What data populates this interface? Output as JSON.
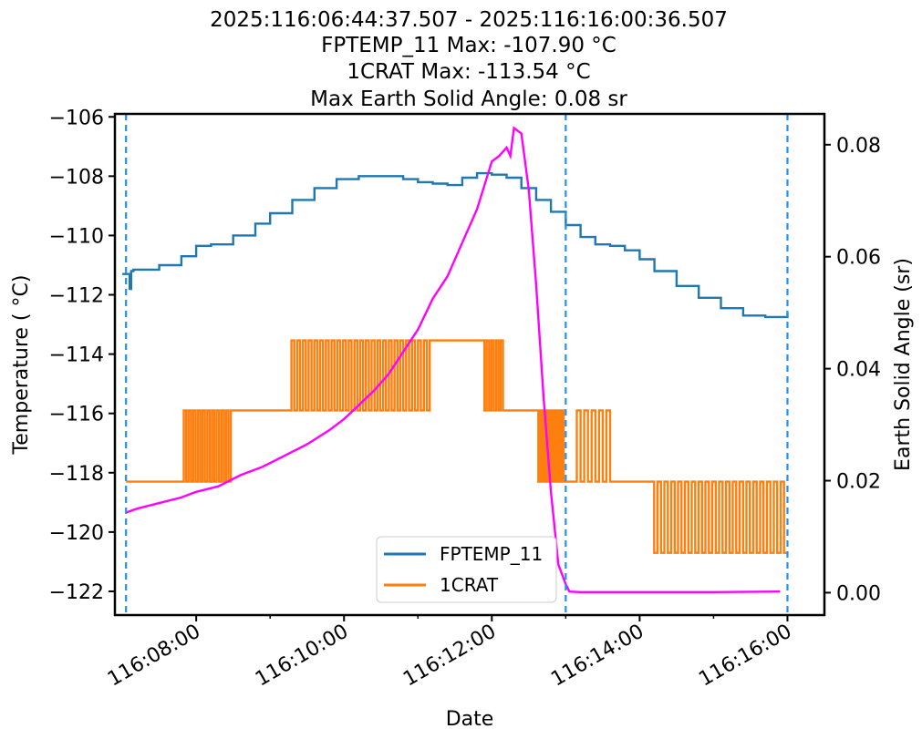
{
  "chart_data": {
    "type": "line",
    "title_lines": [
      "2025:116:06:44:37.507 - 2025:116:16:00:36.507",
      "FPTEMP_11 Max: -107.90 $^\\circ$C",
      "1CRAT Max: -113.54 $^\\circ$C",
      "Max Earth Solid Angle: 0.08 sr"
    ],
    "title_display": [
      "2025:116:06:44:37.507 - 2025:116:16:00:36.507",
      "FPTEMP_11 Max: -107.90 °C",
      "1CRAT Max: -113.54 °C",
      "Max Earth Solid Angle: 0.08 sr"
    ],
    "xlabel": "Date",
    "ylabel": "Temperature ( °C)",
    "y2label": "Earth Solid Angle (sr)",
    "x_unit": "minutes",
    "xlim": [
      6.9,
      16.5
    ],
    "ylim": [
      -122.8,
      -105.9
    ],
    "y2lim": [
      -0.004,
      0.0855
    ],
    "xticks": [
      {
        "v": 8,
        "label": "116:08:00"
      },
      {
        "v": 10,
        "label": "116:10:00"
      },
      {
        "v": 12,
        "label": "116:12:00"
      },
      {
        "v": 14,
        "label": "116:14:00"
      },
      {
        "v": 16,
        "label": "116:16:00"
      }
    ],
    "x_minor_ticks": [
      9,
      11,
      13,
      15
    ],
    "yticks": [
      -106,
      -108,
      -110,
      -112,
      -114,
      -116,
      -118,
      -120,
      -122
    ],
    "ytick_labels": [
      "−106",
      "−108",
      "−110",
      "−112",
      "−114",
      "−116",
      "−118",
      "−120",
      "−122"
    ],
    "y2ticks": [
      0.0,
      0.02,
      0.04,
      0.06,
      0.08
    ],
    "y2tick_labels": [
      "0.00",
      "0.02",
      "0.04",
      "0.06",
      "0.08"
    ],
    "vlines": [
      7.05,
      13.0,
      16.0
    ],
    "grid": false,
    "legend_position": "lower-center",
    "colors": {
      "fptemp": "#1f77b4",
      "crat": "#ff7f0e",
      "earth": "#ff00ff",
      "vline": "#1e90ff"
    },
    "series": [
      {
        "name": "FPTEMP_11",
        "axis": "left",
        "x": [
          7.0,
          7.05,
          7.1,
          7.12,
          7.15,
          7.5,
          7.8,
          8.0,
          8.2,
          8.5,
          8.8,
          9.0,
          9.3,
          9.6,
          9.9,
          10.2,
          10.5,
          10.8,
          11.0,
          11.2,
          11.4,
          11.6,
          11.8,
          12.0,
          12.2,
          12.4,
          12.6,
          12.8,
          13.0,
          13.2,
          13.4,
          13.6,
          13.8,
          14.0,
          14.2,
          14.5,
          14.8,
          15.1,
          15.4,
          15.7,
          15.9,
          16.0
        ],
        "y": [
          -111.3,
          -111.3,
          -111.8,
          -111.2,
          -111.15,
          -111.0,
          -110.7,
          -110.35,
          -110.3,
          -110.0,
          -109.6,
          -109.25,
          -108.8,
          -108.4,
          -108.1,
          -108.0,
          -108.0,
          -108.1,
          -108.2,
          -108.25,
          -108.3,
          -108.05,
          -107.9,
          -107.95,
          -108.05,
          -108.4,
          -108.8,
          -109.2,
          -109.65,
          -110.05,
          -110.3,
          -110.35,
          -110.5,
          -110.8,
          -111.2,
          -111.7,
          -112.1,
          -112.45,
          -112.7,
          -112.75,
          -112.75,
          -112.6
        ]
      },
      {
        "name": "1CRAT",
        "axis": "left",
        "levels": [
          -113.54,
          -115.9,
          -118.3,
          -120.7
        ],
        "segments": [
          {
            "x0": 7.05,
            "x1": 7.8,
            "mode": "const",
            "level": -118.3
          },
          {
            "x0": 7.8,
            "x1": 8.5,
            "mode": "osc",
            "levels": [
              -118.3,
              -115.9
            ],
            "n": 22
          },
          {
            "x0": 8.5,
            "x1": 9.25,
            "mode": "const",
            "level": -115.9
          },
          {
            "x0": 9.25,
            "x1": 10.8,
            "mode": "osc",
            "levels": [
              -115.9,
              -113.54
            ],
            "n": 40
          },
          {
            "x0": 10.8,
            "x1": 11.2,
            "mode": "osc",
            "levels": [
              -115.9,
              -113.54
            ],
            "n": 10
          },
          {
            "x0": 11.2,
            "x1": 11.9,
            "mode": "const",
            "level": -113.54
          },
          {
            "x0": 11.9,
            "x1": 12.15,
            "mode": "osc",
            "levels": [
              -115.9,
              -113.54
            ],
            "n": 8
          },
          {
            "x0": 12.15,
            "x1": 12.6,
            "mode": "const",
            "level": -115.9
          },
          {
            "x0": 12.6,
            "x1": 13.0,
            "mode": "osc",
            "levels": [
              -115.9,
              -118.3
            ],
            "n": 14
          },
          {
            "x0": 13.0,
            "x1": 13.1,
            "mode": "const",
            "level": -118.3
          },
          {
            "x0": 13.1,
            "x1": 13.6,
            "mode": "osc",
            "levels": [
              -118.3,
              -115.9
            ],
            "n": 10
          },
          {
            "x0": 13.6,
            "x1": 14.15,
            "mode": "const",
            "level": -118.3
          },
          {
            "x0": 14.15,
            "x1": 16.0,
            "mode": "osc",
            "levels": [
              -118.3,
              -120.7
            ],
            "n": 40
          }
        ]
      },
      {
        "name": "",
        "axis": "right",
        "x": [
          7.05,
          7.2,
          7.5,
          7.8,
          8.0,
          8.3,
          8.6,
          8.9,
          9.2,
          9.5,
          9.8,
          10.0,
          10.2,
          10.4,
          10.6,
          10.8,
          11.0,
          11.2,
          11.4,
          11.6,
          11.8,
          12.0,
          12.1,
          12.2,
          12.25,
          12.3,
          12.4,
          12.5,
          12.6,
          12.7,
          12.8,
          12.9,
          13.0,
          13.05,
          13.2,
          13.5,
          14.0,
          15.0,
          15.9
        ],
        "y": [
          0.0143,
          0.015,
          0.016,
          0.017,
          0.018,
          0.019,
          0.021,
          0.0225,
          0.0245,
          0.0265,
          0.029,
          0.031,
          0.0335,
          0.036,
          0.039,
          0.043,
          0.047,
          0.0525,
          0.0565,
          0.0625,
          0.0685,
          0.077,
          0.078,
          0.0795,
          0.078,
          0.083,
          0.082,
          0.072,
          0.055,
          0.035,
          0.018,
          0.005,
          0.0015,
          0.0002,
          0.0001,
          0.0001,
          0.0001,
          0.0001,
          0.0002
        ]
      }
    ]
  }
}
